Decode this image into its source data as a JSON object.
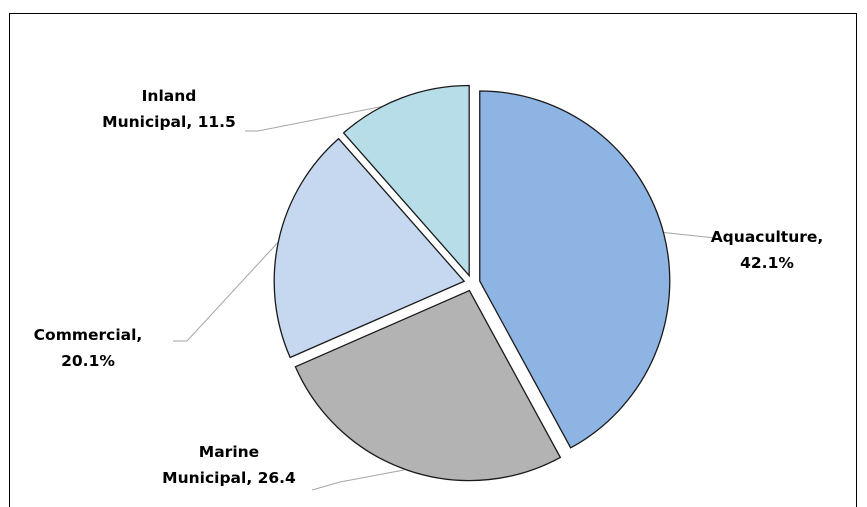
{
  "chart_data": {
    "type": "pie",
    "title": "",
    "slices": [
      {
        "name": "Aquaculture",
        "label_lines": [
          "Aquaculture,",
          "42.1%"
        ],
        "value": 42.1,
        "color": "#8EB4E3"
      },
      {
        "name": "Marine Municipal",
        "label_lines": [
          "Marine",
          "Municipal, 26.4"
        ],
        "value": 26.4,
        "color": "#B3B3B3"
      },
      {
        "name": "Commercial",
        "label_lines": [
          "Commercial,",
          "20.1%"
        ],
        "value": 20.1,
        "color": "#C6D8F0"
      },
      {
        "name": "Inland Municipal",
        "label_lines": [
          "Inland",
          "Municipal, 11.5"
        ],
        "value": 11.5,
        "color": "#B7DEE8"
      }
    ],
    "start_angle": "12 o'clock",
    "direction": "clockwise",
    "exploded": true,
    "legend": "none"
  }
}
